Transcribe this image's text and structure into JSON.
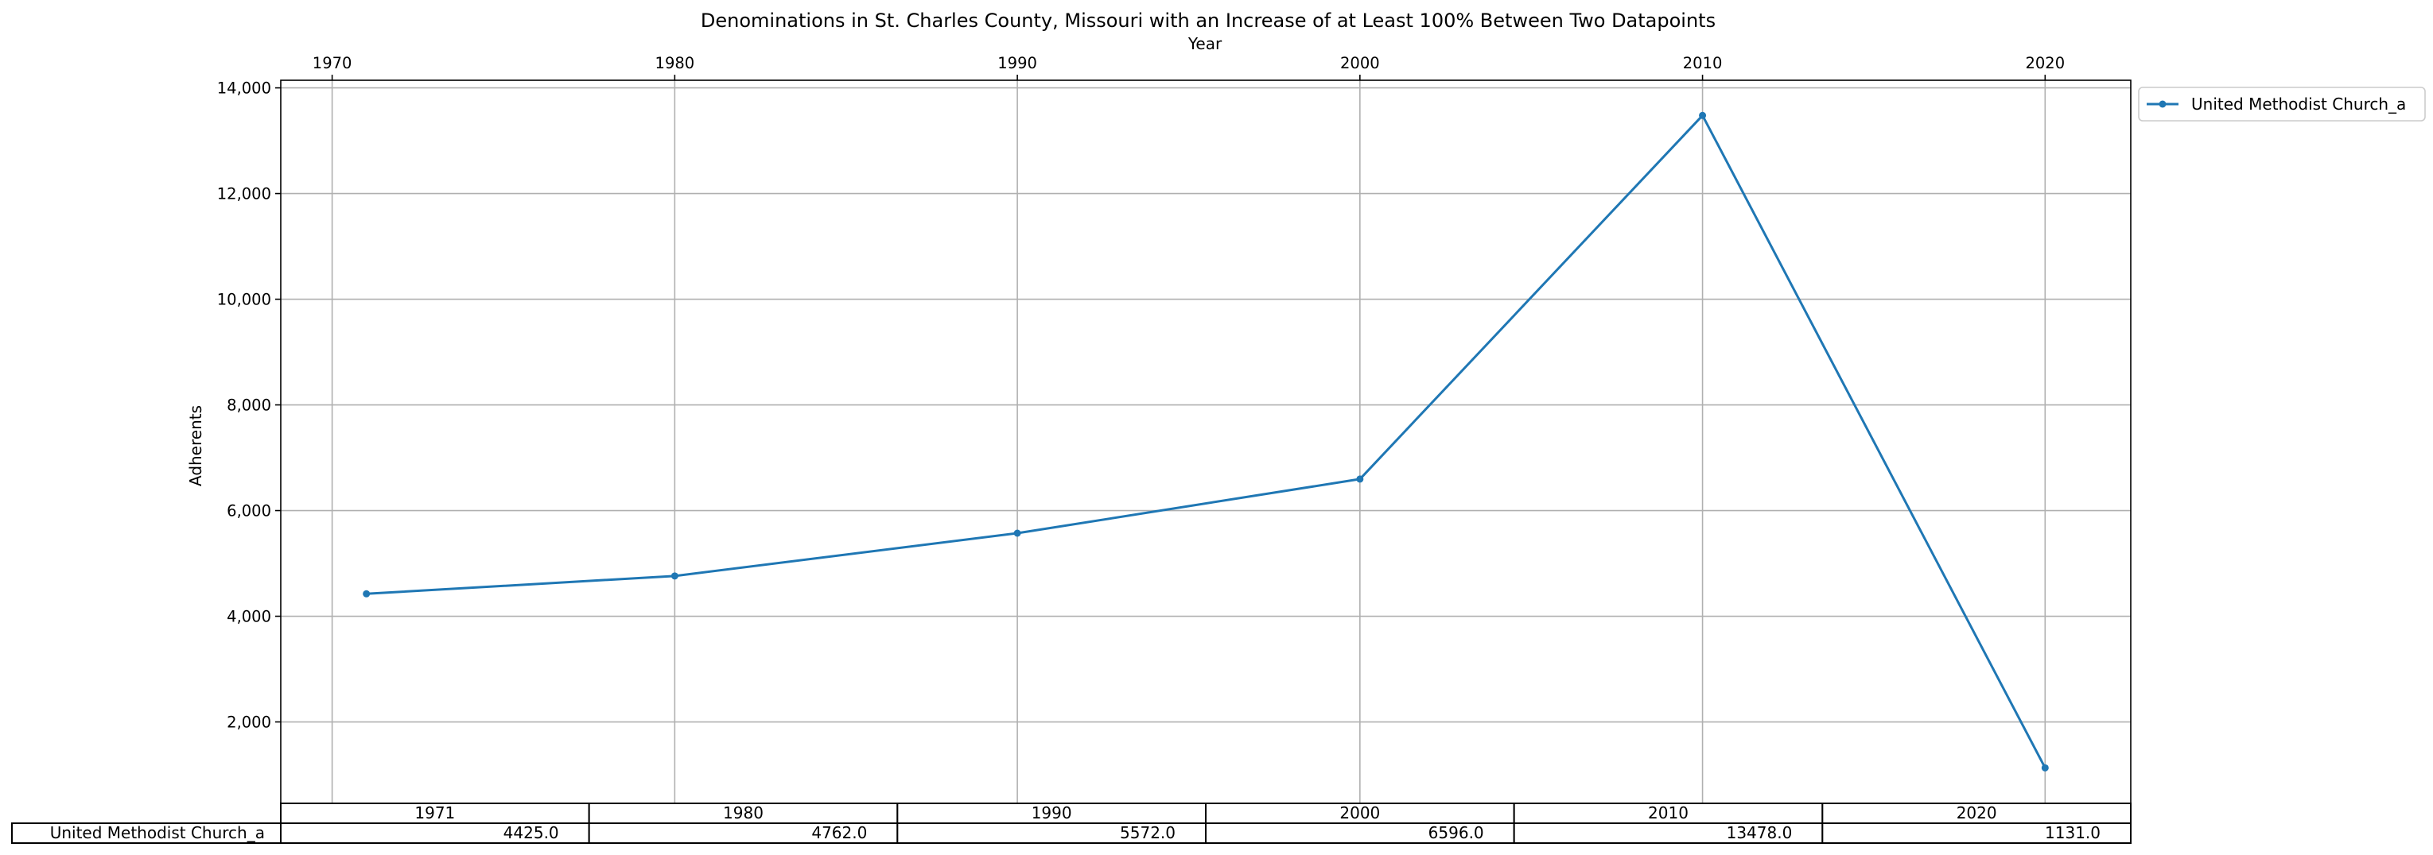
{
  "chart_data": {
    "type": "line",
    "title": "Denominations in St. Charles County, Missouri with an Increase of at Least 100% Between Two Datapoints",
    "xlabel": "Year",
    "ylabel": "Adherents",
    "x_axis_position": "top",
    "xticks": [
      1970,
      1980,
      1990,
      2000,
      2010,
      2020
    ],
    "xtick_labels": [
      "1970",
      "1980",
      "1990",
      "2000",
      "2010",
      "2020"
    ],
    "yticks": [
      2000,
      4000,
      6000,
      8000,
      10000,
      12000,
      14000
    ],
    "ytick_labels": [
      "2,000",
      "4,000",
      "6,000",
      "8,000",
      "10,000",
      "12,000",
      "14,000"
    ],
    "xlim": [
      1968.5,
      2022.5
    ],
    "ylim": [
      459,
      14144
    ],
    "grid": true,
    "legend_placement": "outside-upper-right",
    "x": [
      1971,
      1980,
      1990,
      2000,
      2010,
      2020
    ],
    "series": [
      {
        "name": "United Methodist Church_a",
        "color": "#1f77b4",
        "values": [
          4425,
          4762,
          5572,
          6596,
          13478,
          1131
        ]
      }
    ],
    "table": {
      "columns": [
        "1971",
        "1980",
        "1990",
        "2000",
        "2010",
        "2020"
      ],
      "rows": [
        {
          "label": "United Methodist Church_a",
          "cells": [
            "4425.0",
            "4762.0",
            "5572.0",
            "6596.0",
            "13478.0",
            "1131.0"
          ]
        }
      ]
    }
  }
}
